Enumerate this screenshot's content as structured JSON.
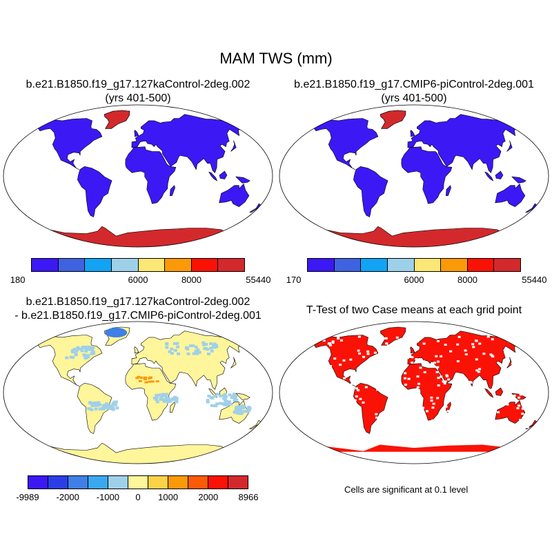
{
  "main_title": "MAM TWS (mm)",
  "panels": {
    "top_left": {
      "title_line1": "b.e21.B1850.f19_g17.127kaControl-2deg.002",
      "title_line2": "(yrs 401-500)"
    },
    "top_right": {
      "title_line1": "b.e21.B1850.f19_g17.CMIP6-piControl-2deg.001",
      "title_line2": "(yrs 401-500)"
    },
    "bottom_left": {
      "title_line1": "b.e21.B1850.f19_g17.127kaControl-2deg.002",
      "title_line2": "- b.e21.B1850.f19_g17.CMIP6-piControl-2deg.001"
    },
    "bottom_right": {
      "title_line1": "T-Test of two Case means at each grid point",
      "note": "Cells are significant at 0.1 level"
    }
  },
  "colorbars": {
    "top_left": {
      "colors": [
        "#3c18f5",
        "#3f63e0",
        "#12a3f5",
        "#9fd0ea",
        "#fbe775",
        "#fb9908",
        "#fb1206",
        "#d3292c"
      ],
      "labels": [
        "180",
        "6000",
        "8000",
        "55440"
      ]
    },
    "top_right": {
      "colors": [
        "#3c18f5",
        "#3f63e0",
        "#12a3f5",
        "#9fd0ea",
        "#fbe775",
        "#fb9908",
        "#fb1206",
        "#d3292c"
      ],
      "labels": [
        "170",
        "6000",
        "8000",
        "55440"
      ]
    },
    "bottom_left": {
      "colors": [
        "#3c18f5",
        "#2b3ee6",
        "#3f7fe6",
        "#3aa8f0",
        "#9fd0ea",
        "#fff59a",
        "#fbd248",
        "#fb9908",
        "#fb5a06",
        "#fb1206",
        "#d3292c"
      ],
      "labels": [
        "-9989",
        "-2000",
        "-1000",
        "0",
        "1000",
        "2000",
        "8966"
      ]
    }
  },
  "map_colors": {
    "land_low": "#3c18f5",
    "antarctic_high": "#d3292c",
    "diff_land": "#fff59a",
    "diff_neg": "#9fd0ea",
    "diff_pos": "#fb9908",
    "significant": "#fb1206",
    "outline": "#000000"
  }
}
